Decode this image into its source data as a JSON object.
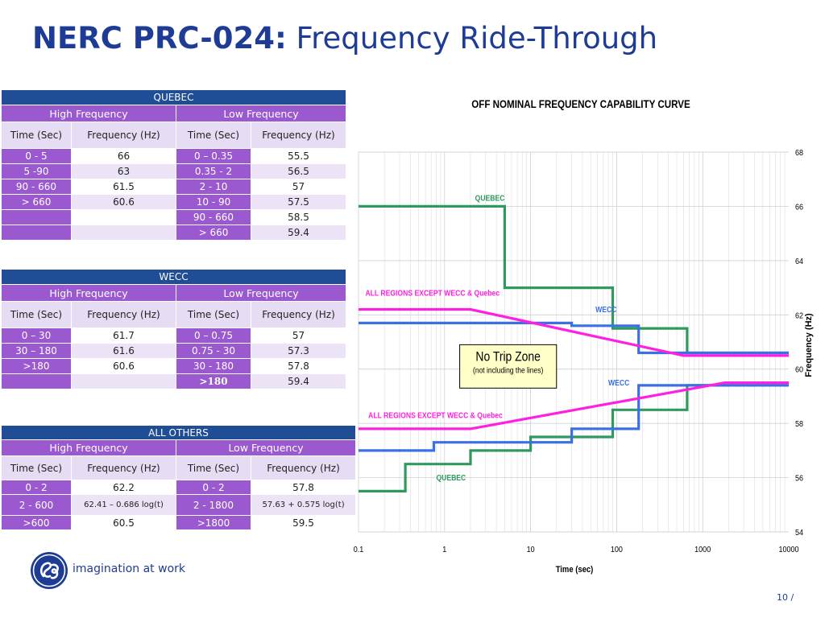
{
  "title": {
    "bold": "NERC PRC-024:",
    "light": "Frequency Ride-Through"
  },
  "tables": {
    "quebec": {
      "name": "QUEBEC",
      "high": "High Frequency",
      "low": "Low Frequency",
      "cols": [
        "Time (Sec)",
        "Frequency (Hz)",
        "Time (Sec)",
        "Frequency (Hz)"
      ],
      "rows": [
        [
          "0 - 5",
          "66",
          "0 – 0.35",
          "55.5"
        ],
        [
          "5 -90",
          "63",
          "0.35 - 2",
          "56.5"
        ],
        [
          "90 - 660",
          "61.5",
          "2 - 10",
          "57"
        ],
        [
          "> 660",
          "60.6",
          "10 - 90",
          "57.5"
        ],
        [
          "",
          "",
          "90 - 660",
          "58.5"
        ],
        [
          "",
          "",
          "> 660",
          "59.4"
        ]
      ]
    },
    "wecc": {
      "name": "WECC",
      "high": "High Frequency",
      "low": "Low Frequency",
      "cols": [
        "Time (Sec)",
        "Frequency (Hz)",
        "Time (Sec)",
        "Frequency (Hz)"
      ],
      "rows": [
        [
          "0 – 30",
          "61.7",
          "0 – 0.75",
          "57"
        ],
        [
          "30 – 180",
          "61.6",
          "0.75 - 30",
          "57.3"
        ],
        [
          ">180",
          "60.6",
          "30 - 180",
          "57.8"
        ],
        [
          "",
          "",
          ">180",
          "59.4"
        ]
      ]
    },
    "others": {
      "name": "ALL OTHERS",
      "high": "High Frequency",
      "low": "Low Frequency",
      "cols": [
        "Time (Sec)",
        "Frequency (Hz)",
        "Time (Sec)",
        "Frequency (Hz)"
      ],
      "rows": [
        [
          "0 - 2",
          "62.2",
          "0 - 2",
          "57.8"
        ],
        [
          "2 - 600",
          "62.41 – 0.686 log(t)",
          "2 - 1800",
          "57.63 + 0.575 log(t)"
        ],
        [
          ">600",
          "60.5",
          ">1800",
          "59.5"
        ]
      ]
    }
  },
  "chart_data": {
    "type": "line",
    "title": "OFF NOMINAL FREQUENCY CAPABILITY CURVE",
    "xlabel": "Time (sec)",
    "ylabel": "Frequency (Hz)",
    "x_scale": "log",
    "xlim": [
      0.1,
      10000
    ],
    "ylim": [
      54,
      68
    ],
    "x_ticks": [
      "0.1",
      "1",
      "10",
      "100",
      "1000",
      "10000"
    ],
    "y_ticks": [
      "54",
      "56",
      "58",
      "60",
      "62",
      "64",
      "66",
      "68"
    ],
    "grid": true,
    "colors": {
      "quebec": "#2e9a5e",
      "wecc": "#3a6fe6",
      "others": "#ff1fe0",
      "zone_fill": "#ffffc8"
    },
    "series": [
      {
        "name": "QUEBEC",
        "group": "quebec",
        "points": [
          [
            0.1,
            66
          ],
          [
            5,
            66
          ],
          [
            5,
            63
          ],
          [
            90,
            63
          ],
          [
            90,
            61.5
          ],
          [
            660,
            61.5
          ],
          [
            660,
            60.6
          ],
          [
            10000,
            60.6
          ]
        ]
      },
      {
        "name": "QUEBEC",
        "group": "quebec",
        "points": [
          [
            0.1,
            55.5
          ],
          [
            0.35,
            55.5
          ],
          [
            0.35,
            56.5
          ],
          [
            2,
            56.5
          ],
          [
            2,
            57
          ],
          [
            10,
            57
          ],
          [
            10,
            57.5
          ],
          [
            90,
            57.5
          ],
          [
            90,
            58.5
          ],
          [
            660,
            58.5
          ],
          [
            660,
            59.4
          ],
          [
            10000,
            59.4
          ]
        ]
      },
      {
        "name": "WECC",
        "group": "wecc",
        "points": [
          [
            0.1,
            61.7
          ],
          [
            30,
            61.7
          ],
          [
            30,
            61.6
          ],
          [
            180,
            61.6
          ],
          [
            180,
            60.6
          ],
          [
            10000,
            60.6
          ]
        ]
      },
      {
        "name": "WECC",
        "group": "wecc",
        "points": [
          [
            0.1,
            57
          ],
          [
            0.75,
            57
          ],
          [
            0.75,
            57.3
          ],
          [
            30,
            57.3
          ],
          [
            30,
            57.8
          ],
          [
            180,
            57.8
          ],
          [
            180,
            59.4
          ],
          [
            10000,
            59.4
          ]
        ]
      },
      {
        "name": "ALL REGIONS EXCEPT WECC & Quebec",
        "group": "others",
        "points": [
          [
            0.1,
            62.2
          ],
          [
            2,
            62.2
          ],
          [
            600,
            60.5
          ],
          [
            10000,
            60.5
          ]
        ]
      },
      {
        "name": "ALL REGIONS EXCEPT WECC & Quebec",
        "group": "others",
        "points": [
          [
            0.1,
            57.8
          ],
          [
            2,
            57.8
          ],
          [
            1800,
            59.5
          ],
          [
            10000,
            59.5
          ]
        ]
      }
    ],
    "annotations": [
      {
        "text": "QUEBEC",
        "group": "quebec",
        "x": 5,
        "y": 66.2,
        "anchor": "end"
      },
      {
        "text": "QUEBEC",
        "group": "quebec",
        "x": 0.8,
        "y": 55.9,
        "anchor": "start"
      },
      {
        "text": "WECC",
        "group": "wecc",
        "x": 100,
        "y": 62.1,
        "anchor": "end"
      },
      {
        "text": "WECC",
        "group": "wecc",
        "x": 80,
        "y": 59.4,
        "anchor": "start"
      },
      {
        "text": "ALL REGIONS EXCEPT WECC & Quebec",
        "group": "others",
        "x": 0.12,
        "y": 62.7,
        "anchor": "start"
      },
      {
        "text": "ALL REGIONS EXCEPT WECC & Quebec",
        "group": "others",
        "x": 0.13,
        "y": 58.2,
        "anchor": "start"
      }
    ],
    "zone": {
      "title": "No Trip Zone",
      "subtitle": "(not including the lines)"
    }
  },
  "footer": {
    "tagline": "imagination at work",
    "page": "10 /"
  }
}
